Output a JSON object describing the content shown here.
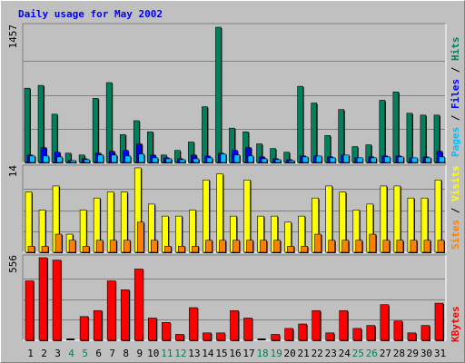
{
  "title": "Daily usage for May 2002",
  "colors": {
    "background": "#c0c0c0",
    "gridline": "#808080",
    "hits": "#00805c",
    "files": "#0000ff",
    "pages": "#00c0ff",
    "visits": "#ffff00",
    "sites": "#ff8000",
    "kbytes": "#ff0000",
    "title": "#0000ff",
    "weekday_label": "#000000",
    "weekend_label": "#00805c"
  },
  "chart_data": [
    {
      "type": "bar",
      "panel": "hits-files-pages",
      "categories": [
        "1",
        "2",
        "3",
        "4",
        "5",
        "6",
        "7",
        "8",
        "9",
        "10",
        "11",
        "12",
        "13",
        "14",
        "15",
        "16",
        "17",
        "18",
        "19",
        "20",
        "21",
        "22",
        "23",
        "24",
        "25",
        "26",
        "27",
        "28",
        "29",
        "30",
        "31"
      ],
      "weekend_days": [
        "4",
        "5",
        "11",
        "12",
        "18",
        "19",
        "25",
        "26"
      ],
      "ymax_label": "1457",
      "ylim": [
        0,
        1457
      ],
      "series": [
        {
          "name": "Hits",
          "values": [
            800,
            830,
            520,
            100,
            80,
            690,
            860,
            300,
            450,
            330,
            80,
            130,
            220,
            600,
            1457,
            370,
            330,
            200,
            150,
            110,
            820,
            640,
            290,
            570,
            170,
            190,
            670,
            760,
            530,
            510,
            510
          ]
        },
        {
          "name": "Files",
          "values": [
            80,
            160,
            110,
            20,
            40,
            100,
            120,
            130,
            200,
            80,
            50,
            40,
            80,
            70,
            100,
            130,
            160,
            60,
            40,
            30,
            70,
            70,
            60,
            80,
            50,
            60,
            70,
            70,
            50,
            60,
            120
          ]
        },
        {
          "name": "Pages",
          "values": [
            70,
            70,
            60,
            20,
            30,
            80,
            80,
            70,
            90,
            50,
            40,
            30,
            40,
            50,
            90,
            80,
            70,
            40,
            30,
            20,
            60,
            70,
            50,
            80,
            50,
            50,
            60,
            60,
            50,
            50,
            60
          ]
        }
      ],
      "legend": [
        "Pages",
        "Files",
        "Hits"
      ],
      "legend_position": "right"
    },
    {
      "type": "bar",
      "panel": "visits-sites",
      "categories": [
        "1",
        "2",
        "3",
        "4",
        "5",
        "6",
        "7",
        "8",
        "9",
        "10",
        "11",
        "12",
        "13",
        "14",
        "15",
        "16",
        "17",
        "18",
        "19",
        "20",
        "21",
        "22",
        "23",
        "24",
        "25",
        "26",
        "27",
        "28",
        "29",
        "30",
        "31"
      ],
      "ymax_label": "14",
      "ylim": [
        0,
        14
      ],
      "series": [
        {
          "name": "Visits",
          "values": [
            10,
            7,
            11,
            3,
            7,
            9,
            10,
            10,
            14,
            8,
            6,
            6,
            7,
            12,
            13,
            6,
            12,
            6,
            6,
            5,
            6,
            9,
            11,
            10,
            7,
            8,
            11,
            11,
            9,
            9,
            12
          ]
        },
        {
          "name": "Sites",
          "values": [
            1,
            1,
            3,
            2,
            1,
            2,
            2,
            2,
            5,
            2,
            1,
            1,
            1,
            2,
            2,
            2,
            2,
            2,
            2,
            1,
            1,
            3,
            2,
            2,
            2,
            3,
            2,
            2,
            2,
            2,
            2
          ]
        }
      ],
      "legend": [
        "Sites",
        "Visits"
      ],
      "legend_position": "right"
    },
    {
      "type": "bar",
      "panel": "kbytes",
      "categories": [
        "1",
        "2",
        "3",
        "4",
        "5",
        "6",
        "7",
        "8",
        "9",
        "10",
        "11",
        "12",
        "13",
        "14",
        "15",
        "16",
        "17",
        "18",
        "19",
        "20",
        "21",
        "22",
        "23",
        "24",
        "25",
        "26",
        "27",
        "28",
        "29",
        "30",
        "31"
      ],
      "ymax_label": "556",
      "ylim": [
        0,
        556
      ],
      "series": [
        {
          "name": "KBytes",
          "values": [
            400,
            556,
            540,
            0,
            160,
            200,
            400,
            340,
            480,
            150,
            120,
            40,
            220,
            50,
            50,
            200,
            150,
            0,
            40,
            80,
            110,
            200,
            50,
            200,
            80,
            100,
            240,
            130,
            50,
            100,
            250
          ]
        }
      ],
      "legend": [
        "KBytes"
      ],
      "legend_position": "right"
    }
  ]
}
